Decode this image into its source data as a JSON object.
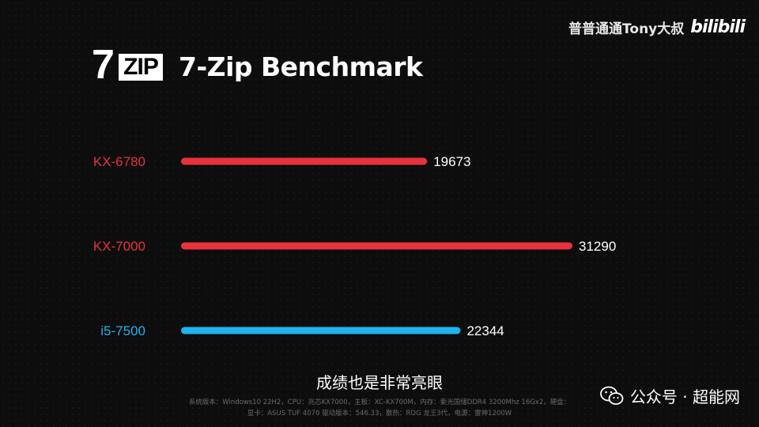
{
  "watermark": {
    "channel": "普普通通Tony大叔",
    "site_logo": "bilibili"
  },
  "header": {
    "logo_seven": "7",
    "logo_zip": "ZIP",
    "title": "7-Zip Benchmark"
  },
  "chart_data": {
    "type": "bar",
    "orientation": "horizontal",
    "categories": [
      "KX-6780",
      "KX-7000",
      "i5-7500"
    ],
    "values": [
      19673,
      31290,
      22344
    ],
    "colors": [
      "#e8323c",
      "#e8323c",
      "#1fb3f0"
    ],
    "title": "7-Zip Benchmark",
    "xlabel": "",
    "ylabel": "",
    "xlim": [
      0,
      31290
    ],
    "grid": false,
    "legend": "none"
  },
  "subtitle": "成绩也是非常亮眼",
  "specs": {
    "line1": "系统版本：Windows10 22H2，CPU：兆芯KX7000，主板：XC-KX700M，内存：紫光国储DDR4 3200Mhz 16Gx2，硬盘：",
    "line2": "显卡：ASUS TUF 4070 驱动版本：546.33，散热：ROG 龙王3代，电源：雷神1200W"
  },
  "wechat": {
    "label": "公众号 · 超能网"
  }
}
